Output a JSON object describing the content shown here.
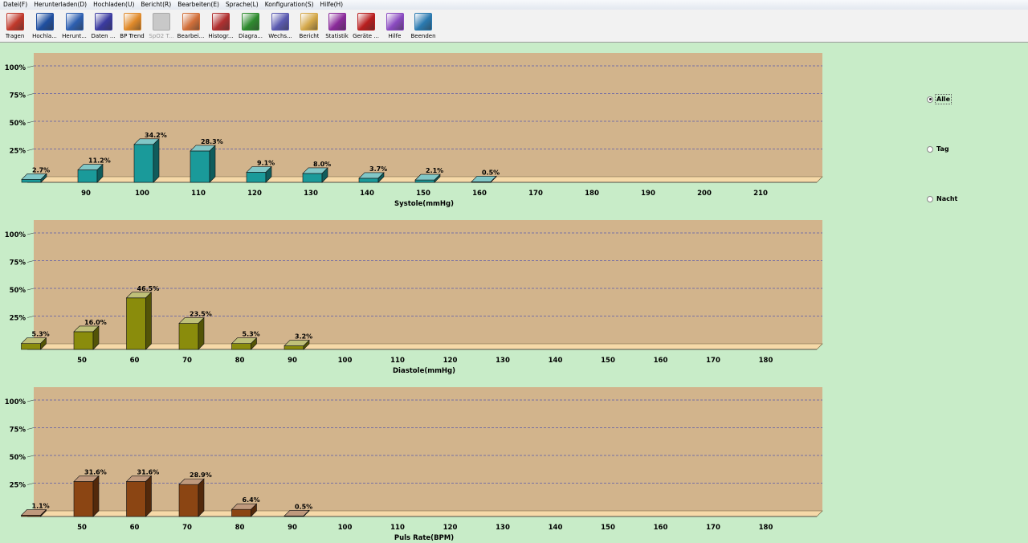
{
  "menubar": {
    "items": [
      "Datei(F)",
      "Herunterladen(D)",
      "Hochladen(U)",
      "Bericht(R)",
      "Bearbeiten(E)",
      "Sprache(L)",
      "Konfiguration(S)",
      "Hilfe(H)"
    ]
  },
  "toolbar": {
    "buttons": [
      {
        "label": "Tragen",
        "icon": "tragen-icon",
        "color": "#c0392b",
        "disabled": false
      },
      {
        "label": "Hochla...",
        "icon": "upload-person-icon",
        "color": "#1f4fa0",
        "disabled": false
      },
      {
        "label": "Herunt...",
        "icon": "download-books-icon",
        "color": "#2d5fb0",
        "disabled": false
      },
      {
        "label": "Daten ...",
        "icon": "people-data-icon",
        "color": "#3a3aa0",
        "disabled": false
      },
      {
        "label": "BP Trend",
        "icon": "trend-chart-icon",
        "color": "#e08a2a",
        "disabled": false
      },
      {
        "label": "SpO2 T...",
        "icon": "spo2-icon",
        "color": "#b0b0b0",
        "disabled": true
      },
      {
        "label": "Bearbei...",
        "icon": "edit-document-icon",
        "color": "#d2703a",
        "disabled": false
      },
      {
        "label": "Histogr...",
        "icon": "histogram-icon",
        "color": "#b03030",
        "disabled": false
      },
      {
        "label": "Diagra...",
        "icon": "pie-diagram-icon",
        "color": "#2e8b2e",
        "disabled": false
      },
      {
        "label": "Wechs...",
        "icon": "switch-chart-icon",
        "color": "#5a5ab0",
        "disabled": false
      },
      {
        "label": "Bericht",
        "icon": "printer-report-icon",
        "color": "#d4a84a",
        "disabled": false
      },
      {
        "label": "Statistik",
        "icon": "sigma-icon",
        "color": "#8a2a9a",
        "disabled": false
      },
      {
        "label": "Geräte ...",
        "icon": "info-device-icon",
        "color": "#b81e1e",
        "disabled": false
      },
      {
        "label": "Hilfe",
        "icon": "help-icon",
        "color": "#8a4ac0",
        "disabled": false
      },
      {
        "label": "Beenden",
        "icon": "exit-globe-icon",
        "color": "#2a7ab0",
        "disabled": false
      }
    ]
  },
  "colors": {
    "plot_back": "#d2b48c",
    "floor": "#f6d9a8",
    "grid": "#5a5aaa",
    "systole_bar": "#1a9a9a",
    "diastole_bar": "#8a8c0c",
    "pulse_bar": "#8b4513"
  },
  "radio": {
    "options": [
      {
        "label": "Alle",
        "checked": true
      },
      {
        "label": "Tag",
        "checked": false
      },
      {
        "label": "Nacht",
        "checked": false
      }
    ]
  },
  "chart_data": [
    {
      "type": "bar",
      "xlabel": "Systole(mmHg)",
      "ylabel": "",
      "y_ticks": [
        "100%",
        "75%",
        "50%",
        "25%"
      ],
      "ylim": [
        0,
        100
      ],
      "x_ticks": [
        "90",
        "100",
        "110",
        "120",
        "130",
        "140",
        "150",
        "160",
        "170",
        "180",
        "190",
        "200",
        "210"
      ],
      "x_tick_values": [
        90,
        100,
        110,
        120,
        130,
        140,
        150,
        160,
        170,
        180,
        190,
        200,
        210
      ],
      "bin_start": 80,
      "bin_width": 10,
      "values": [
        2.7,
        11.2,
        34.2,
        28.3,
        9.1,
        8.0,
        3.7,
        2.1,
        0.5
      ],
      "value_labels": [
        "2.7%",
        "11.2%",
        "34.2%",
        "28.3%",
        "9.1%",
        "8.0%",
        "3.7%",
        "2.1%",
        "0.5%"
      ]
    },
    {
      "type": "bar",
      "xlabel": "Diastole(mmHg)",
      "ylabel": "",
      "y_ticks": [
        "100%",
        "75%",
        "50%",
        "25%"
      ],
      "ylim": [
        0,
        100
      ],
      "x_ticks": [
        "50",
        "60",
        "70",
        "80",
        "90",
        "100",
        "110",
        "120",
        "130",
        "140",
        "150",
        "160",
        "170",
        "180"
      ],
      "x_tick_values": [
        50,
        60,
        70,
        80,
        90,
        100,
        110,
        120,
        130,
        140,
        150,
        160,
        170,
        180
      ],
      "bin_start": 40,
      "bin_width": 10,
      "values": [
        5.3,
        16.0,
        46.5,
        23.5,
        5.3,
        3.2
      ],
      "value_labels": [
        "5.3%",
        "16.0%",
        "46.5%",
        "23.5%",
        "5.3%",
        "3.2%"
      ]
    },
    {
      "type": "bar",
      "xlabel": "Puls Rate(BPM)",
      "ylabel": "",
      "y_ticks": [
        "100%",
        "75%",
        "50%",
        "25%"
      ],
      "ylim": [
        0,
        100
      ],
      "x_ticks": [
        "50",
        "60",
        "70",
        "80",
        "90",
        "100",
        "110",
        "120",
        "130",
        "140",
        "150",
        "160",
        "170",
        "180"
      ],
      "x_tick_values": [
        50,
        60,
        70,
        80,
        90,
        100,
        110,
        120,
        130,
        140,
        150,
        160,
        170,
        180
      ],
      "bin_start": 40,
      "bin_width": 10,
      "values": [
        1.1,
        31.6,
        31.6,
        28.9,
        6.4,
        0.5
      ],
      "value_labels": [
        "1.1%",
        "31.6%",
        "31.6%",
        "28.9%",
        "6.4%",
        "0.5%"
      ]
    }
  ]
}
